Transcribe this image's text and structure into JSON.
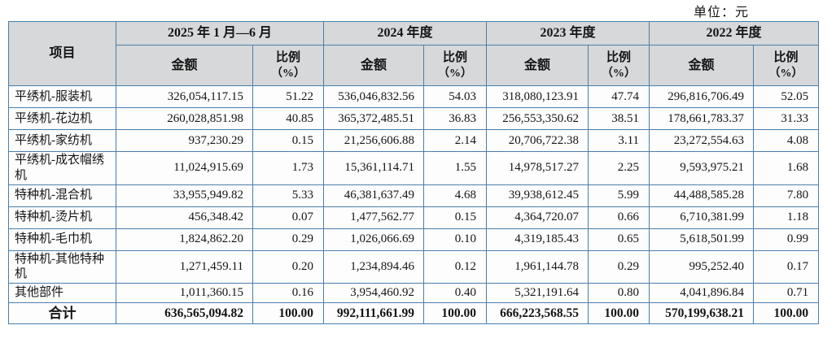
{
  "unit_label": "单位：元",
  "colors": {
    "table_border": "#4a7fab",
    "header_bg": "#d6d8da",
    "cell_bg": "#fdfdfd",
    "text": "#141414"
  },
  "table": {
    "item_header": "项目",
    "amount_header": "金额",
    "ratio_header_line1": "比例",
    "ratio_header_line2": "（%）",
    "periods": [
      "2025 年 1 月—6 月",
      "2024 年度",
      "2023 年度",
      "2022 年度"
    ],
    "rows": [
      {
        "item": "平绣机-服装机",
        "values": [
          "326,054,117.15",
          "51.22",
          "536,046,832.56",
          "54.03",
          "318,080,123.91",
          "47.74",
          "296,816,706.49",
          "52.05"
        ]
      },
      {
        "item": "平绣机-花边机",
        "values": [
          "260,028,851.98",
          "40.85",
          "365,372,485.51",
          "36.83",
          "256,553,350.62",
          "38.51",
          "178,661,783.37",
          "31.33"
        ]
      },
      {
        "item": "平绣机-家纺机",
        "values": [
          "937,230.29",
          "0.15",
          "21,256,606.88",
          "2.14",
          "20,706,722.38",
          "3.11",
          "23,272,554.63",
          "4.08"
        ]
      },
      {
        "item": "平绣机-成衣帽绣机",
        "values": [
          "11,024,915.69",
          "1.73",
          "15,361,114.71",
          "1.55",
          "14,978,517.27",
          "2.25",
          "9,593,975.21",
          "1.68"
        ]
      },
      {
        "item": "特种机-混合机",
        "values": [
          "33,955,949.82",
          "5.33",
          "46,381,637.49",
          "4.68",
          "39,938,612.45",
          "5.99",
          "44,488,585.28",
          "7.80"
        ]
      },
      {
        "item": "特种机-烫片机",
        "values": [
          "456,348.42",
          "0.07",
          "1,477,562.77",
          "0.15",
          "4,364,720.07",
          "0.66",
          "6,710,381.99",
          "1.18"
        ]
      },
      {
        "item": "特种机-毛巾机",
        "values": [
          "1,824,862.20",
          "0.29",
          "1,026,066.69",
          "0.10",
          "4,319,185.43",
          "0.65",
          "5,618,501.99",
          "0.99"
        ]
      },
      {
        "item": "特种机-其他特种机",
        "values": [
          "1,271,459.11",
          "0.20",
          "1,234,894.46",
          "0.12",
          "1,961,144.78",
          "0.29",
          "995,252.40",
          "0.17"
        ]
      },
      {
        "item": "其他部件",
        "values": [
          "1,011,360.15",
          "0.16",
          "3,954,460.92",
          "0.40",
          "5,321,191.64",
          "0.80",
          "4,041,896.84",
          "0.71"
        ]
      }
    ],
    "total": {
      "item": "合计",
      "values": [
        "636,565,094.82",
        "100.00",
        "992,111,661.99",
        "100.00",
        "666,223,568.55",
        "100.00",
        "570,199,638.21",
        "100.00"
      ]
    }
  }
}
